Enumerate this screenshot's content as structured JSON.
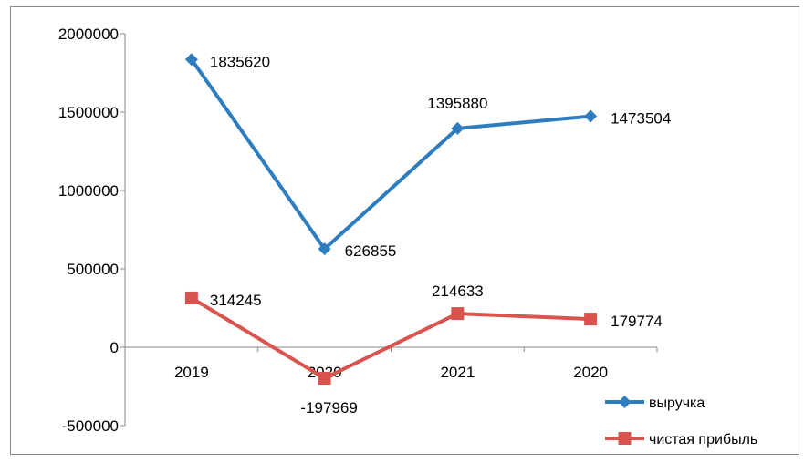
{
  "chart_data": {
    "type": "line",
    "categories": [
      "2019",
      "2020",
      "2021",
      "2020"
    ],
    "series": [
      {
        "name": "выручка",
        "values": [
          1835620,
          626855,
          1395880,
          1473504
        ],
        "color": "#2e7ebf",
        "marker": "diamond"
      },
      {
        "name": "чистая прибыль",
        "values": [
          314245,
          -197969,
          214633,
          179774
        ],
        "color": "#d9534f",
        "marker": "square"
      }
    ],
    "ylim": [
      -500000,
      2000000
    ],
    "yticks": [
      2000000,
      1500000,
      1000000,
      500000,
      0,
      -500000
    ],
    "legend_position": "bottom-right",
    "grid": false
  }
}
